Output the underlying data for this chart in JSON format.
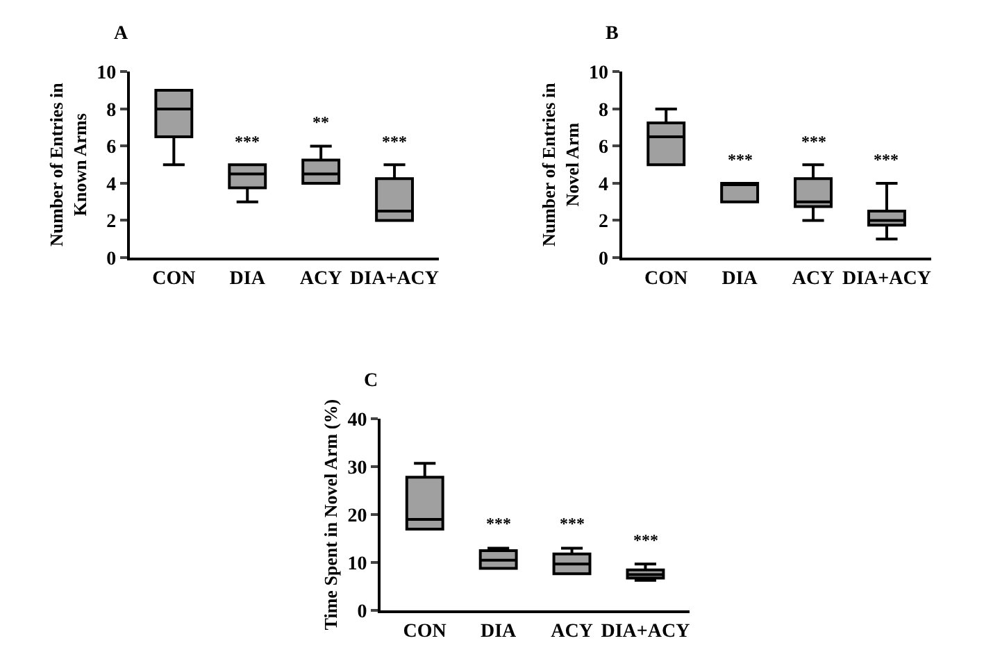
{
  "chart_data": [
    {
      "type": "box",
      "title": "A",
      "ylabel": "Number of Entries in\nKnown Arms",
      "categories": [
        "CON",
        "DIA",
        "ACY",
        "DIA+ACY"
      ],
      "color": "#a0a0a0",
      "ylim": [
        0,
        10
      ],
      "yticks": [
        0,
        2,
        4,
        6,
        8,
        10
      ],
      "legend": false,
      "boxes": [
        {
          "low": 5,
          "q1": 6.5,
          "median": 8,
          "q3": 9,
          "high": 9
        },
        {
          "low": 3,
          "q1": 3.75,
          "median": 4.5,
          "q3": 5,
          "high": 5
        },
        {
          "low": 4,
          "q1": 4,
          "median": 4.5,
          "q3": 5.25,
          "high": 6
        },
        {
          "low": 2,
          "q1": 2,
          "median": 2.5,
          "q3": 4.25,
          "high": 5
        }
      ],
      "annotations": [
        "***",
        "**",
        "***"
      ]
    },
    {
      "type": "box",
      "title": "B",
      "ylabel": "Number of Entries in\nNovel Arm",
      "categories": [
        "CON",
        "DIA",
        "ACY",
        "DIA+ACY"
      ],
      "color": "#a0a0a0",
      "ylim": [
        0,
        10
      ],
      "yticks": [
        0,
        2,
        4,
        6,
        8,
        10
      ],
      "legend": false,
      "boxes": [
        {
          "low": 5,
          "q1": 5,
          "median": 6.5,
          "q3": 7.25,
          "high": 8
        },
        {
          "low": 3,
          "q1": 3,
          "median": 4,
          "q3": 4,
          "high": 4
        },
        {
          "low": 2,
          "q1": 2.75,
          "median": 3,
          "q3": 4.25,
          "high": 5
        },
        {
          "low": 1,
          "q1": 1.75,
          "median": 2,
          "q3": 2.5,
          "high": 4
        }
      ],
      "annotations": [
        "***",
        "***",
        "***"
      ]
    },
    {
      "type": "box",
      "title": "C",
      "ylabel": "Time Spent in Novel Arm (%)",
      "categories": [
        "CON",
        "DIA",
        "ACY",
        "DIA+ACY"
      ],
      "color": "#a0a0a0",
      "ylim": [
        0,
        40
      ],
      "yticks": [
        0,
        10,
        20,
        30,
        40
      ],
      "legend": false,
      "boxes": [
        {
          "low": 17,
          "q1": 17,
          "median": 19,
          "q3": 27.8,
          "high": 30.7
        },
        {
          "low": 8.8,
          "q1": 8.8,
          "median": 10.5,
          "q3": 12.5,
          "high": 13
        },
        {
          "low": 7.7,
          "q1": 7.7,
          "median": 9.7,
          "q3": 11.8,
          "high": 13
        },
        {
          "low": 6.3,
          "q1": 6.8,
          "median": 7.5,
          "q3": 8.5,
          "high": 9.7
        }
      ],
      "annotations": [
        "***",
        "***",
        "***"
      ]
    }
  ]
}
